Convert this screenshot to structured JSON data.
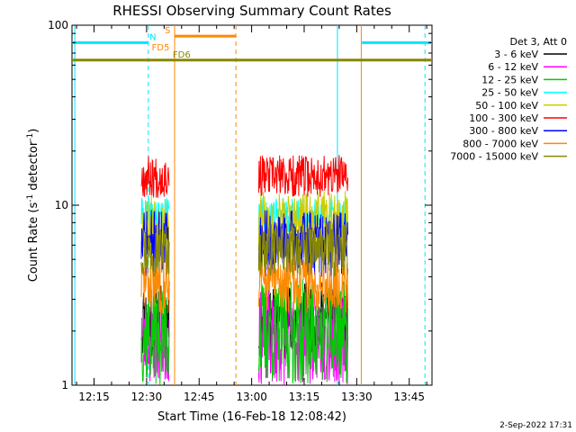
{
  "chart_data": {
    "type": "line",
    "title": "RHESSI Observing Summary Count Rates",
    "xlabel": "Start Time (16-Feb-18 12:08:42)",
    "ylabel": "Count Rate (s",
    "ylabel_sup1": "-1",
    "ylabel_mid": " detector",
    "ylabel_sup2": "-1",
    "ylabel_end": ")",
    "yscale": "log",
    "ylim": [
      1,
      100
    ],
    "xlim_minutes": [
      728.7,
      831.5
    ],
    "x_ticks": [
      {
        "minute": 735,
        "label": "12:15"
      },
      {
        "minute": 750,
        "label": "12:30"
      },
      {
        "minute": 765,
        "label": "12:45"
      },
      {
        "minute": 780,
        "label": "13:00"
      },
      {
        "minute": 795,
        "label": "13:15"
      },
      {
        "minute": 810,
        "label": "13:30"
      },
      {
        "minute": 825,
        "label": "13:45"
      }
    ],
    "y_ticks": [
      {
        "value": 1,
        "label": "1"
      },
      {
        "value": 10,
        "label": "10"
      },
      {
        "value": 100,
        "label": "100"
      }
    ],
    "legend_header": "Det 3, Att 0",
    "series": [
      {
        "name": "3 - 6 keV",
        "color": "#000000",
        "lo": 1.4,
        "hi": 3.8,
        "seed": 11
      },
      {
        "name": "6 - 12 keV",
        "color": "#ff00ff",
        "lo": 1.0,
        "hi": 3.3,
        "seed": 23
      },
      {
        "name": "12 - 25 keV",
        "color": "#00cc00",
        "lo": 1.0,
        "hi": 3.9,
        "seed": 37
      },
      {
        "name": "25 - 50 keV",
        "color": "#00ffff",
        "lo": 7.0,
        "hi": 11.0,
        "seed": 41
      },
      {
        "name": "50 - 100 keV",
        "color": "#cccc00",
        "lo": 5.0,
        "hi": 12.0,
        "seed": 53
      },
      {
        "name": "100 - 300 keV",
        "color": "#ff0000",
        "lo": 11.0,
        "hi": 19.0,
        "seed": 67
      },
      {
        "name": "300 - 800 keV",
        "color": "#0000ff",
        "lo": 4.0,
        "hi": 9.5,
        "seed": 71
      },
      {
        "name": "800 - 7000 keV",
        "color": "#ff8800",
        "lo": 2.5,
        "hi": 5.5,
        "seed": 83
      },
      {
        "name": "7000 - 15000 keV",
        "color": "#888800",
        "lo": 4.0,
        "hi": 8.0,
        "seed": 97
      }
    ],
    "data_intervals": [
      {
        "start": 748.5,
        "end": 756.5
      },
      {
        "start": 782.0,
        "end": 807.5
      }
    ],
    "flags": [
      {
        "label": "N",
        "color": "#00e5ff",
        "y": 80,
        "segments": [
          [
            728.7,
            750.5
          ],
          [
            811.5,
            831.5
          ]
        ],
        "label_at": 751.8
      },
      {
        "label": "S",
        "color": "#ff8800",
        "y": 87,
        "segments": [
          [
            758.0,
            775.5
          ]
        ],
        "label_at": 756.0
      },
      {
        "label": "FD5",
        "color": "#ff8800",
        "y": 70,
        "segments": [],
        "label_at": 754.0
      },
      {
        "label": "FD6",
        "color": "#888800",
        "y": 64,
        "segments": [
          [
            728.7,
            831.5
          ]
        ],
        "label_at": 760.0
      }
    ],
    "vlines": [
      {
        "minute": 729.5,
        "color": "#00e5ff",
        "dashed": false
      },
      {
        "minute": 750.5,
        "color": "#00e5ff",
        "dashed": true
      },
      {
        "minute": 758.0,
        "color": "#ff8800",
        "dashed": false
      },
      {
        "minute": 775.5,
        "color": "#ff8800",
        "dashed": true
      },
      {
        "minute": 804.5,
        "color": "#00e5ff",
        "dashed": false
      },
      {
        "minute": 811.3,
        "color": "#ff8800",
        "dashed": false
      },
      {
        "minute": 829.5,
        "color": "#00e5ff",
        "dashed": true
      }
    ],
    "footer_date": "2-Sep-2022 17:31"
  }
}
